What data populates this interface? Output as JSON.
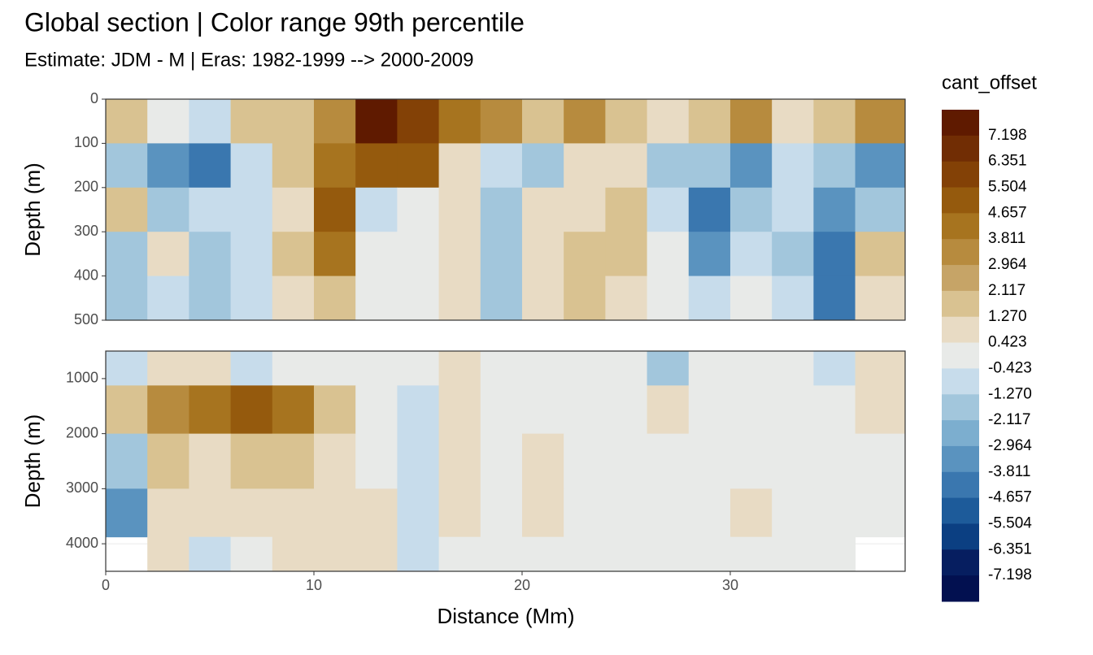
{
  "chart_data": {
    "type": "contour",
    "title": "Global section | Color range 99th percentile",
    "subtitle": "Estimate: JDM - M | Eras: 1982-1999 --> 2000-2009",
    "x_label": "Distance (Mm)",
    "x": [
      1,
      3,
      5,
      7,
      9,
      11,
      13,
      15,
      17,
      19,
      21,
      23,
      25,
      27,
      29,
      31,
      33,
      35,
      37
    ],
    "xlim": [
      0,
      38.4
    ],
    "xticks": [
      0,
      10,
      20,
      30
    ],
    "panels": [
      {
        "y_label": "Depth (m)",
        "ylim": [
          500,
          0
        ],
        "yticks": [
          0,
          100,
          200,
          300,
          400,
          500
        ],
        "depths": [
          50,
          150,
          250,
          350,
          450
        ],
        "values": [
          [
            1.3,
            0.4,
            -1,
            2,
            1.5,
            3,
            7.5,
            6,
            4,
            3,
            2,
            3,
            2,
            1,
            1.5,
            3,
            0.5,
            2,
            3
          ],
          [
            -2,
            -3,
            -4,
            -1,
            2,
            4,
            5,
            5,
            1,
            -1,
            -2,
            0.5,
            1,
            -1.5,
            -2,
            -3,
            -1,
            -2,
            -3
          ],
          [
            1.5,
            -1.5,
            -1,
            -1,
            0.5,
            5,
            -1,
            0,
            0.5,
            -2,
            1,
            0.5,
            1.5,
            -0.5,
            -4,
            -2,
            -1,
            -3,
            -2
          ],
          [
            -2,
            0.6,
            -1.5,
            -1,
            1.5,
            4,
            0,
            0,
            0.6,
            -2,
            1,
            1.5,
            1.5,
            0,
            -3,
            -1,
            -1.5,
            -4,
            2
          ],
          [
            -2,
            -1,
            -1.5,
            -0.5,
            0.8,
            2,
            0,
            0,
            0.6,
            -1.5,
            1,
            1.5,
            1,
            0,
            -1,
            0,
            -1,
            -4,
            1
          ]
        ]
      },
      {
        "y_label": "Depth (m)",
        "ylim": [
          4500,
          500
        ],
        "yticks": [
          1000,
          2000,
          3000,
          4000
        ],
        "depths": [
          750,
          1500,
          2500,
          3500,
          4250
        ],
        "values": [
          [
            -1,
            0.8,
            0.5,
            -0.8,
            0,
            0,
            0,
            0,
            0.6,
            0,
            0,
            0,
            0,
            -1.5,
            0,
            0,
            0,
            -0.5,
            0.8
          ],
          [
            1.5,
            3,
            4.5,
            5,
            4,
            1.5,
            0,
            -0.5,
            0.6,
            0,
            0,
            0,
            0,
            0.6,
            0,
            0,
            0,
            0,
            0.6
          ],
          [
            -2,
            1.5,
            1,
            1.5,
            1.5,
            0.6,
            0,
            -0.8,
            0.6,
            0,
            0.6,
            0,
            0,
            0,
            0,
            0,
            0,
            0,
            0
          ],
          [
            -3.5,
            0.6,
            0.6,
            0.6,
            0.8,
            0.6,
            0.6,
            -0.8,
            0.6,
            0,
            0.6,
            0,
            0,
            0,
            0,
            0.6,
            0,
            0,
            0
          ],
          [
            null,
            0.6,
            -0.6,
            0,
            0.6,
            0.6,
            0.6,
            -0.6,
            0,
            0,
            0,
            0,
            0,
            0,
            0,
            0,
            0,
            0,
            null
          ]
        ]
      }
    ],
    "legend": {
      "title": "cant_offset",
      "breaks": [
        7.198,
        6.351,
        5.504,
        4.657,
        3.811,
        2.964,
        2.117,
        1.27,
        0.423,
        -0.423,
        -1.27,
        -2.117,
        -2.964,
        -3.811,
        -4.657,
        -5.504,
        -6.351,
        -7.198
      ],
      "labels": [
        "7.198",
        "6.351",
        "5.504",
        "4.657",
        "3.811",
        "2.964",
        "2.117",
        "1.270",
        "0.423",
        "-0.423",
        "-1.270",
        "-2.117",
        "-2.964",
        "-3.811",
        "-4.657",
        "-5.504",
        "-6.351",
        "-7.198"
      ],
      "colors": [
        "#5f1a00",
        "#712d04",
        "#834106",
        "#955a0d",
        "#a7741f",
        "#b78b3e",
        "#c6a467",
        "#d9c291",
        "#e8dbc4",
        "#e8eae8",
        "#c7dceb",
        "#a2c6dc",
        "#7caecf",
        "#5a93bf",
        "#3a77af",
        "#1d5b9a",
        "#0b3f82",
        "#061e60",
        "#021050"
      ]
    },
    "grid": true
  }
}
